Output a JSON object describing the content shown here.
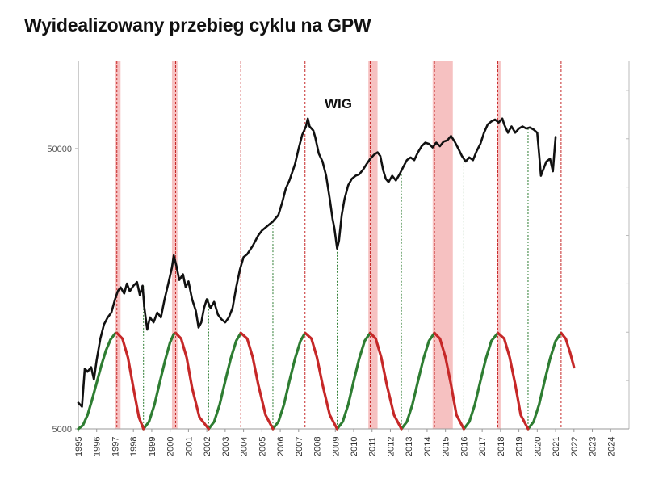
{
  "chart_data": {
    "type": "line",
    "title": "Wyidealizowany przebieg cyklu na GPW",
    "y_scale": "log",
    "ylim": [
      5000,
      100000
    ],
    "y_ticks": [
      {
        "value": 50000,
        "label": "50000"
      },
      {
        "value": 5000,
        "label": "5000"
      }
    ],
    "xlim": [
      1995,
      2025
    ],
    "x_ticks": [
      "1995",
      "1996",
      "1997",
      "1998",
      "1999",
      "2000",
      "2001",
      "2002",
      "2003",
      "2004",
      "2005",
      "2006",
      "2007",
      "2008",
      "2009",
      "2010",
      "2011",
      "2012",
      "2013",
      "2014",
      "2015",
      "2016",
      "2017",
      "2018",
      "2019",
      "2020",
      "2021",
      "2022",
      "2023",
      "2024"
    ],
    "series": [
      {
        "name": "WIG",
        "color": "#111111",
        "points": [
          [
            1995.0,
            6200
          ],
          [
            1995.2,
            6000
          ],
          [
            1995.35,
            8200
          ],
          [
            1995.5,
            8000
          ],
          [
            1995.7,
            8300
          ],
          [
            1995.85,
            7500
          ],
          [
            1996.0,
            8800
          ],
          [
            1996.2,
            10500
          ],
          [
            1996.4,
            11800
          ],
          [
            1996.6,
            12500
          ],
          [
            1996.8,
            13000
          ],
          [
            1997.0,
            14500
          ],
          [
            1997.15,
            15500
          ],
          [
            1997.3,
            16000
          ],
          [
            1997.5,
            15200
          ],
          [
            1997.65,
            16500
          ],
          [
            1997.8,
            15500
          ],
          [
            1998.0,
            16200
          ],
          [
            1998.2,
            16700
          ],
          [
            1998.35,
            15000
          ],
          [
            1998.5,
            16200
          ],
          [
            1998.6,
            13500
          ],
          [
            1998.75,
            11300
          ],
          [
            1998.9,
            12500
          ],
          [
            1999.1,
            12000
          ],
          [
            1999.3,
            13000
          ],
          [
            1999.5,
            12500
          ],
          [
            1999.7,
            14500
          ],
          [
            1999.9,
            16500
          ],
          [
            2000.1,
            18800
          ],
          [
            2000.2,
            20800
          ],
          [
            2000.35,
            19000
          ],
          [
            2000.5,
            17000
          ],
          [
            2000.7,
            17800
          ],
          [
            2000.85,
            16000
          ],
          [
            2001.0,
            16800
          ],
          [
            2001.2,
            14500
          ],
          [
            2001.4,
            13200
          ],
          [
            2001.55,
            11500
          ],
          [
            2001.7,
            12000
          ],
          [
            2001.85,
            13500
          ],
          [
            2002.0,
            14500
          ],
          [
            2002.2,
            13500
          ],
          [
            2002.4,
            14200
          ],
          [
            2002.6,
            12800
          ],
          [
            2002.8,
            12300
          ],
          [
            2003.0,
            12000
          ],
          [
            2003.2,
            12500
          ],
          [
            2003.4,
            13500
          ],
          [
            2003.6,
            16000
          ],
          [
            2003.8,
            18500
          ],
          [
            2004.0,
            20500
          ],
          [
            2004.2,
            21000
          ],
          [
            2004.5,
            22500
          ],
          [
            2004.8,
            24500
          ],
          [
            2005.0,
            25500
          ],
          [
            2005.3,
            26500
          ],
          [
            2005.6,
            27500
          ],
          [
            2005.9,
            29000
          ],
          [
            2006.1,
            32000
          ],
          [
            2006.3,
            36000
          ],
          [
            2006.5,
            38500
          ],
          [
            2006.8,
            44000
          ],
          [
            2007.0,
            50000
          ],
          [
            2007.2,
            56000
          ],
          [
            2007.4,
            60000
          ],
          [
            2007.5,
            64000
          ],
          [
            2007.6,
            60000
          ],
          [
            2007.8,
            58000
          ],
          [
            2007.9,
            55000
          ],
          [
            2008.1,
            48000
          ],
          [
            2008.3,
            45000
          ],
          [
            2008.5,
            40000
          ],
          [
            2008.7,
            33000
          ],
          [
            2008.85,
            28000
          ],
          [
            2008.95,
            26000
          ],
          [
            2009.1,
            22000
          ],
          [
            2009.2,
            23500
          ],
          [
            2009.35,
            29000
          ],
          [
            2009.5,
            33000
          ],
          [
            2009.7,
            37000
          ],
          [
            2009.9,
            39000
          ],
          [
            2010.1,
            40000
          ],
          [
            2010.3,
            40500
          ],
          [
            2010.5,
            42000
          ],
          [
            2010.7,
            44000
          ],
          [
            2010.9,
            46000
          ],
          [
            2011.1,
            47500
          ],
          [
            2011.3,
            48500
          ],
          [
            2011.45,
            47000
          ],
          [
            2011.6,
            42000
          ],
          [
            2011.75,
            39000
          ],
          [
            2011.9,
            38000
          ],
          [
            2012.1,
            40000
          ],
          [
            2012.3,
            38500
          ],
          [
            2012.5,
            40500
          ],
          [
            2012.7,
            43000
          ],
          [
            2012.9,
            45500
          ],
          [
            2013.1,
            46500
          ],
          [
            2013.3,
            45500
          ],
          [
            2013.5,
            48500
          ],
          [
            2013.7,
            51000
          ],
          [
            2013.9,
            52500
          ],
          [
            2014.1,
            52000
          ],
          [
            2014.3,
            50500
          ],
          [
            2014.5,
            52500
          ],
          [
            2014.7,
            51000
          ],
          [
            2014.9,
            53000
          ],
          [
            2015.1,
            53500
          ],
          [
            2015.3,
            55500
          ],
          [
            2015.5,
            53000
          ],
          [
            2015.7,
            50000
          ],
          [
            2015.9,
            47000
          ],
          [
            2016.1,
            45000
          ],
          [
            2016.3,
            46500
          ],
          [
            2016.5,
            45500
          ],
          [
            2016.7,
            49000
          ],
          [
            2016.9,
            52000
          ],
          [
            2017.1,
            57000
          ],
          [
            2017.3,
            61000
          ],
          [
            2017.5,
            62500
          ],
          [
            2017.7,
            63500
          ],
          [
            2017.9,
            62000
          ],
          [
            2018.1,
            64000
          ],
          [
            2018.2,
            61000
          ],
          [
            2018.4,
            57000
          ],
          [
            2018.6,
            60000
          ],
          [
            2018.8,
            57000
          ],
          [
            2019.0,
            59000
          ],
          [
            2019.2,
            60000
          ],
          [
            2019.4,
            59000
          ],
          [
            2019.6,
            59500
          ],
          [
            2019.8,
            58500
          ],
          [
            2020.0,
            57000
          ],
          [
            2020.1,
            48000
          ],
          [
            2020.2,
            40000
          ],
          [
            2020.35,
            42500
          ],
          [
            2020.5,
            45000
          ],
          [
            2020.7,
            46000
          ],
          [
            2020.85,
            41500
          ],
          [
            2020.95,
            50000
          ],
          [
            2021.0,
            55000
          ]
        ]
      },
      {
        "name": "",
        "color": "#2e7d32",
        "points": [
          [
            1995.0,
            5000
          ],
          [
            1995.25,
            5150
          ],
          [
            1995.5,
            5600
          ],
          [
            1995.75,
            6350
          ],
          [
            1996.0,
            7300
          ],
          [
            1996.25,
            8400
          ],
          [
            1996.5,
            9500
          ],
          [
            1996.75,
            10400
          ],
          [
            1997.0,
            10950
          ],
          [
            1997.1,
            11000
          ],
          [
            1998.55,
            5000
          ],
          [
            1998.85,
            5300
          ],
          [
            1999.15,
            6100
          ],
          [
            1999.45,
            7400
          ],
          [
            1999.75,
            8900
          ],
          [
            2000.0,
            10200
          ],
          [
            2000.2,
            10900
          ],
          [
            2000.3,
            11000
          ],
          [
            2002.1,
            5000
          ],
          [
            2002.4,
            5300
          ],
          [
            2002.7,
            6100
          ],
          [
            2003.0,
            7400
          ],
          [
            2003.3,
            8900
          ],
          [
            2003.6,
            10300
          ],
          [
            2003.85,
            11000
          ],
          [
            2005.6,
            5000
          ],
          [
            2005.9,
            5300
          ],
          [
            2006.2,
            6100
          ],
          [
            2006.5,
            7400
          ],
          [
            2006.8,
            8900
          ],
          [
            2007.1,
            10300
          ],
          [
            2007.35,
            11000
          ],
          [
            2009.1,
            5000
          ],
          [
            2009.4,
            5300
          ],
          [
            2009.7,
            6100
          ],
          [
            2010.0,
            7400
          ],
          [
            2010.3,
            8900
          ],
          [
            2010.6,
            10300
          ],
          [
            2010.9,
            11000
          ],
          [
            2012.6,
            5000
          ],
          [
            2012.9,
            5300
          ],
          [
            2013.2,
            6100
          ],
          [
            2013.5,
            7400
          ],
          [
            2013.8,
            8900
          ],
          [
            2014.1,
            10300
          ],
          [
            2014.4,
            11000
          ],
          [
            2016.0,
            5000
          ],
          [
            2016.3,
            5300
          ],
          [
            2016.6,
            6100
          ],
          [
            2016.9,
            7400
          ],
          [
            2017.2,
            8900
          ],
          [
            2017.5,
            10300
          ],
          [
            2017.85,
            11000
          ],
          [
            2019.5,
            5000
          ],
          [
            2019.8,
            5300
          ],
          [
            2020.1,
            6100
          ],
          [
            2020.4,
            7400
          ],
          [
            2020.7,
            8900
          ],
          [
            2021.0,
            10300
          ],
          [
            2021.3,
            11000
          ]
        ]
      },
      {
        "name": "",
        "color": "#c62828",
        "points": [
          [
            1997.1,
            11000
          ],
          [
            1997.4,
            10500
          ],
          [
            1997.7,
            9000
          ],
          [
            1998.0,
            7000
          ],
          [
            1998.3,
            5500
          ],
          [
            1998.55,
            5000
          ],
          [
            2000.3,
            11000
          ],
          [
            2000.6,
            10500
          ],
          [
            2000.9,
            9000
          ],
          [
            2001.2,
            7000
          ],
          [
            2001.6,
            5500
          ],
          [
            2002.1,
            5000
          ],
          [
            2003.85,
            11000
          ],
          [
            2004.2,
            10500
          ],
          [
            2004.5,
            9000
          ],
          [
            2004.8,
            7200
          ],
          [
            2005.2,
            5600
          ],
          [
            2005.6,
            5000
          ],
          [
            2007.35,
            11000
          ],
          [
            2007.7,
            10500
          ],
          [
            2008.0,
            9000
          ],
          [
            2008.3,
            7200
          ],
          [
            2008.7,
            5600
          ],
          [
            2009.1,
            5000
          ],
          [
            2010.9,
            11000
          ],
          [
            2011.2,
            10500
          ],
          [
            2011.5,
            9000
          ],
          [
            2011.8,
            7200
          ],
          [
            2012.2,
            5600
          ],
          [
            2012.6,
            5000
          ],
          [
            2014.4,
            11000
          ],
          [
            2014.7,
            10500
          ],
          [
            2015.0,
            9000
          ],
          [
            2015.3,
            7200
          ],
          [
            2015.6,
            5600
          ],
          [
            2016.0,
            5000
          ],
          [
            2017.85,
            11000
          ],
          [
            2018.2,
            10500
          ],
          [
            2018.5,
            9000
          ],
          [
            2018.8,
            7200
          ],
          [
            2019.1,
            5600
          ],
          [
            2019.5,
            5000
          ],
          [
            2021.3,
            11000
          ],
          [
            2021.55,
            10500
          ],
          [
            2021.8,
            9300
          ],
          [
            2022.0,
            8300
          ]
        ]
      }
    ],
    "peak_lines": [
      1997.1,
      2000.3,
      2003.85,
      2007.35,
      2010.9,
      2014.4,
      2017.85,
      2021.3
    ],
    "trough_lines": [
      1998.55,
      2002.1,
      2005.6,
      2009.1,
      2012.6,
      2016.0,
      2019.5
    ],
    "shaded_periods": [
      [
        1997.0,
        1997.3
      ],
      [
        2000.1,
        2000.4
      ],
      [
        2010.8,
        2011.3
      ],
      [
        2014.3,
        2015.4
      ],
      [
        2017.8,
        2018.0
      ]
    ],
    "colors": {
      "peak_line": "#c62828",
      "trough_line": "#2e7d32",
      "shade": "#f4b6b6",
      "axis": "#999999"
    }
  }
}
